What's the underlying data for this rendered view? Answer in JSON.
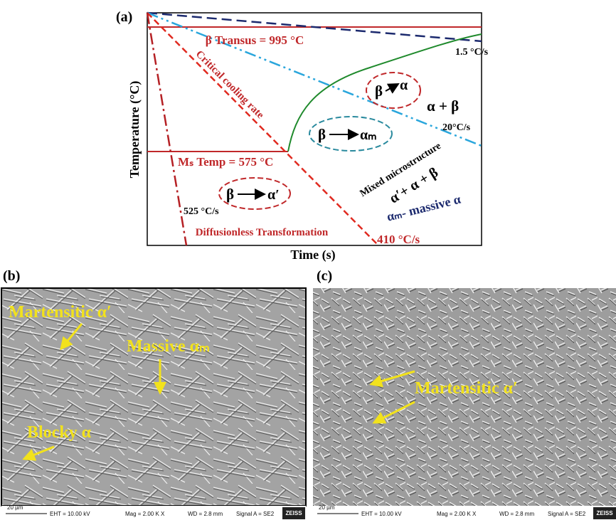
{
  "panel_a": {
    "label": "(a)",
    "y_axis_label": "Temperature (°C)",
    "x_axis_label": "Time (s)",
    "beta_transus": "β Transus = 995 °C",
    "ms_temp": "Mₛ Temp = 575 °C",
    "critical_rate": "Critical cooling rate",
    "rate_slow": "1.5 °C/s",
    "rate_mid": "20°C/s",
    "rate_fast": "525 °C/s",
    "rate_critical": "410 °C/s",
    "phase_alpha_beta": "α + β",
    "mixed": "Mixed microstructure",
    "mixed_phases": "α′+ α + β",
    "massive_note": "αₘ- massive α",
    "diffusionless": "Diffusionless Transformation",
    "transformations": [
      {
        "from": "β",
        "to": "α"
      },
      {
        "from": "β",
        "to": "αₘ"
      },
      {
        "from": "β",
        "to": "α′"
      }
    ]
  },
  "panel_b": {
    "label": "(b)",
    "annotations": [
      "Martensitic α′",
      "Massive αₘ",
      "Blocky α"
    ],
    "info_bar": {
      "scale": "20 µm",
      "eht": "EHT = 10.00 kV",
      "mag": "Mag =   2.00 K X",
      "wd": "WD = 2.8 mm",
      "signal": "Signal A = SE2",
      "logo": "ZEISS"
    }
  },
  "panel_c": {
    "label": "(c)",
    "annotations": [
      "Martensitic α′"
    ],
    "info_bar": {
      "scale": "20 µm",
      "eht": "EHT = 10.00 kV",
      "mag": "Mag =   2.00 K X",
      "wd": "WD = 2.8 mm",
      "signal": "Signal A = SE2",
      "logo": "ZEISS"
    }
  }
}
